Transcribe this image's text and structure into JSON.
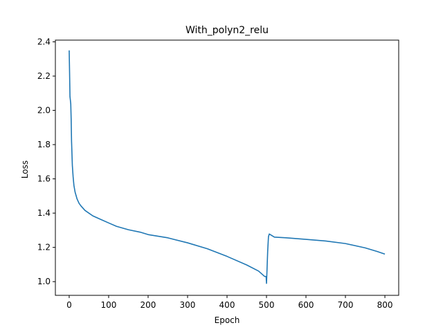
{
  "chart_data": {
    "type": "line",
    "title": "With_polyn2_relu",
    "xlabel": "Epoch",
    "ylabel": "Loss",
    "xlim": [
      -35,
      835
    ],
    "ylim": [
      0.92,
      2.41
    ],
    "xticks": [
      0,
      100,
      200,
      300,
      400,
      500,
      600,
      700,
      800
    ],
    "yticks": [
      1.0,
      1.2,
      1.4,
      1.6,
      1.8,
      2.0,
      2.2,
      2.4
    ],
    "ytick_labels": [
      "1.0",
      "1.2",
      "1.4",
      "1.6",
      "1.8",
      "2.0",
      "2.2",
      "2.4"
    ],
    "grid": false,
    "legend": "none",
    "series": [
      {
        "color": "#1f77b4",
        "x": [
          0,
          1,
          2,
          3,
          4,
          5,
          6,
          8,
          10,
          12,
          15,
          20,
          25,
          30,
          40,
          50,
          60,
          80,
          100,
          120,
          150,
          180,
          200,
          250,
          300,
          350,
          400,
          450,
          480,
          495,
          499,
          500,
          501,
          503,
          505,
          507,
          510,
          520,
          550,
          600,
          650,
          700,
          750,
          780,
          800
        ],
        "y": [
          2.35,
          2.22,
          2.08,
          2.06,
          2.04,
          1.95,
          1.82,
          1.68,
          1.61,
          1.56,
          1.52,
          1.48,
          1.455,
          1.44,
          1.415,
          1.4,
          1.385,
          1.365,
          1.345,
          1.325,
          1.305,
          1.29,
          1.275,
          1.255,
          1.225,
          1.19,
          1.145,
          1.095,
          1.06,
          1.03,
          1.03,
          0.99,
          1.05,
          1.18,
          1.265,
          1.28,
          1.275,
          1.26,
          1.255,
          1.245,
          1.235,
          1.22,
          1.195,
          1.175,
          1.16
        ]
      }
    ]
  }
}
